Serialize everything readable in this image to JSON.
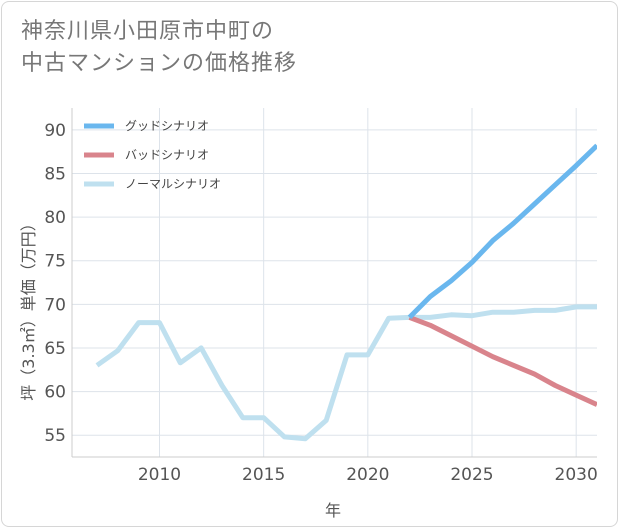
{
  "title_lines": [
    "神奈川県小田原市中町の",
    "中古マンションの価格推移"
  ],
  "chart_data": {
    "type": "line",
    "title": "神奈川県小田原市中町の中古マンションの価格推移",
    "xlabel": "年",
    "ylabel": "坪（3.3㎡）単価（万円）",
    "xlim": [
      2005.8,
      2031
    ],
    "ylim": [
      52.5,
      92.5
    ],
    "xticks": [
      2010,
      2015,
      2020,
      2025,
      2030
    ],
    "yticks": [
      55,
      60,
      65,
      70,
      75,
      80,
      85,
      90
    ],
    "grid": true,
    "legend_position": "top-left",
    "series": [
      {
        "name": "グッドシナリオ",
        "color": "#6ab7ee",
        "x": [
          2022,
          2023,
          2024,
          2025,
          2026,
          2027,
          2028,
          2029,
          2030,
          2031
        ],
        "y": [
          68.5,
          70.9,
          72.7,
          74.8,
          77.3,
          79.3,
          81.5,
          83.7,
          85.9,
          88.2
        ]
      },
      {
        "name": "バッドシナリオ",
        "color": "#d9848c",
        "x": [
          2022,
          2023,
          2024,
          2025,
          2026,
          2027,
          2028,
          2029,
          2030,
          2031
        ],
        "y": [
          68.5,
          67.6,
          66.4,
          65.2,
          64.0,
          63.0,
          62.0,
          60.7,
          59.6,
          58.5
        ]
      },
      {
        "name": "ノーマルシナリオ",
        "color": "#bfe0ef",
        "x": [
          2007,
          2008,
          2009,
          2010,
          2011,
          2012,
          2013,
          2014,
          2015,
          2016,
          2017,
          2018,
          2019,
          2020,
          2021,
          2022,
          2023,
          2024,
          2025,
          2026,
          2027,
          2028,
          2029,
          2030,
          2031
        ],
        "y": [
          63.0,
          64.7,
          67.9,
          67.9,
          63.3,
          65.0,
          60.7,
          57.0,
          57.0,
          54.8,
          54.6,
          56.7,
          64.2,
          64.2,
          68.4,
          68.5,
          68.5,
          68.8,
          68.7,
          69.1,
          69.1,
          69.3,
          69.3,
          69.7,
          69.7
        ]
      }
    ]
  }
}
